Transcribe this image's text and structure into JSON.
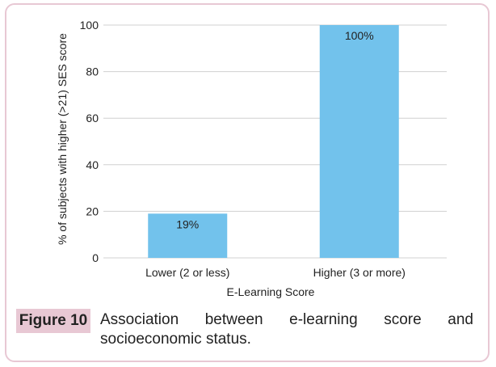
{
  "chart_data": {
    "type": "bar",
    "categories": [
      "Lower (2 or less)",
      "Higher (3 or more)"
    ],
    "values": [
      19,
      100
    ],
    "data_labels": [
      "19%",
      "100%"
    ],
    "title": "",
    "xlabel": "E-Learning Score",
    "ylabel": "% of subjects with higher (>21) SES score",
    "ylim": [
      0,
      100
    ],
    "yticks": [
      0,
      20,
      40,
      60,
      80,
      100
    ],
    "grid": true,
    "bar_color": "#72c2ec",
    "grid_color": "#d0d0d0"
  },
  "caption": {
    "label": "Figure 10",
    "text": "Association between e-learning score and socioeconomic status.",
    "label_color": "#e8c8d4"
  }
}
